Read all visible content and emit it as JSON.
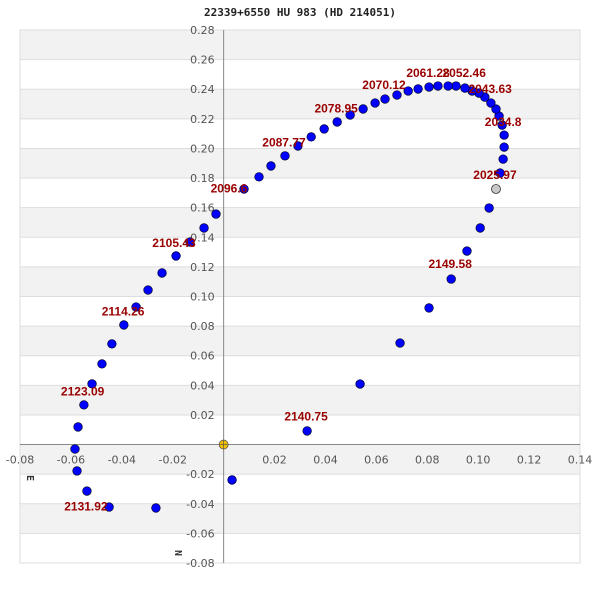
{
  "chart_data": {
    "type": "scatter",
    "title": "22339+6550 HU  983 (HD 214051)",
    "xlim": [
      -0.08,
      0.14
    ],
    "ylim": [
      -0.08,
      0.28
    ],
    "x_ticks": [
      "-0.08",
      "-0.06",
      "-0.04",
      "-0.02",
      "0.02",
      "0.04",
      "0.06",
      "0.08",
      "0.10",
      "0.12",
      "0.14"
    ],
    "y_ticks": [
      "0.28",
      "0.26",
      "0.24",
      "0.22",
      "0.20",
      "0.18",
      "0.16",
      "0.14",
      "0.12",
      "0.10",
      "0.08",
      "0.06",
      "0.04",
      "0.02",
      "-0.02",
      "-0.04",
      "-0.06",
      "-0.08"
    ],
    "grid": "horizontal bands",
    "direction_labels": {
      "east": "E",
      "north": "N"
    },
    "colors": {
      "orbit_points": "#0000ff",
      "primary": "#f5c000",
      "current": "#c8c8c8",
      "labels": "#990000",
      "band": "#f2f2f2"
    },
    "primary": [
      0,
      0
    ],
    "current_position": [
      0.107,
      0.1726
    ],
    "orbit_points": [
      [
        0.1086,
        0.1834
      ],
      [
        0.1098,
        0.1928
      ],
      [
        0.1102,
        0.2009
      ],
      [
        0.1102,
        0.209
      ],
      [
        0.1094,
        0.2158
      ],
      [
        0.1082,
        0.2219
      ],
      [
        0.107,
        0.2266
      ],
      [
        0.105,
        0.2307
      ],
      [
        0.1026,
        0.2347
      ],
      [
        0.1003,
        0.2374
      ],
      [
        0.0976,
        0.2388
      ],
      [
        0.0948,
        0.2408
      ],
      [
        0.0913,
        0.2422
      ],
      [
        0.0882,
        0.2422
      ],
      [
        0.0842,
        0.2422
      ],
      [
        0.0807,
        0.2415
      ],
      [
        0.0764,
        0.2402
      ],
      [
        0.0725,
        0.2388
      ],
      [
        0.0681,
        0.2361
      ],
      [
        0.0634,
        0.2334
      ],
      [
        0.0595,
        0.2307
      ],
      [
        0.0548,
        0.2267
      ],
      [
        0.0497,
        0.2226
      ],
      [
        0.0446,
        0.2179
      ],
      [
        0.0395,
        0.2132
      ],
      [
        0.0344,
        0.2078
      ],
      [
        0.0292,
        0.2017
      ],
      [
        0.0241,
        0.195
      ],
      [
        0.0186,
        0.1882
      ],
      [
        0.0139,
        0.1808
      ],
      [
        0.008,
        0.1726
      ],
      [
        -0.003,
        0.1557
      ],
      [
        -0.0077,
        0.1463
      ],
      [
        -0.0132,
        0.1368
      ],
      [
        -0.0187,
        0.1274
      ],
      [
        -0.0242,
        0.1159
      ],
      [
        -0.0297,
        0.1044
      ],
      [
        -0.0344,
        0.0929
      ],
      [
        -0.0392,
        0.0808
      ],
      [
        -0.0439,
        0.068
      ],
      [
        -0.0478,
        0.0545
      ],
      [
        -0.0517,
        0.041
      ],
      [
        -0.0549,
        0.0268
      ],
      [
        -0.0572,
        0.0119
      ],
      [
        -0.0584,
        -0.003
      ],
      [
        -0.0576,
        -0.0178
      ],
      [
        -0.0537,
        -0.0314
      ],
      [
        -0.045,
        -0.0422
      ],
      [
        -0.0266,
        -0.0428
      ],
      [
        0.0033,
        -0.0239
      ],
      [
        0.0328,
        0.0092
      ],
      [
        0.0536,
        0.0409
      ],
      [
        0.0693,
        0.0686
      ],
      [
        0.0807,
        0.0923
      ],
      [
        0.0894,
        0.1118
      ],
      [
        0.0956,
        0.1307
      ],
      [
        0.1008,
        0.1463
      ],
      [
        0.1043,
        0.1598
      ]
    ],
    "annotations": [
      {
        "text": "2061.28",
        "x": 0.0803,
        "y": 0.251
      },
      {
        "text": "2052.46",
        "x": 0.0945,
        "y": 0.251
      },
      {
        "text": "2070.12",
        "x": 0.063,
        "y": 0.243
      },
      {
        "text": "2043.63",
        "x": 0.1047,
        "y": 0.24
      },
      {
        "text": "2078.95",
        "x": 0.0442,
        "y": 0.227
      },
      {
        "text": "2034.8",
        "x": 0.1098,
        "y": 0.218
      },
      {
        "text": "2087.77",
        "x": 0.0237,
        "y": 0.204
      },
      {
        "text": "2025.97",
        "x": 0.1066,
        "y": 0.182
      },
      {
        "text": "2096.6",
        "x": 0.0021,
        "y": 0.173
      },
      {
        "text": "2105.43",
        "x": -0.0195,
        "y": 0.136
      },
      {
        "text": "2149.58",
        "x": 0.089,
        "y": 0.122
      },
      {
        "text": "2114.26",
        "x": -0.0395,
        "y": 0.09
      },
      {
        "text": "2123.09",
        "x": -0.0554,
        "y": 0.036
      },
      {
        "text": "2140.75",
        "x": 0.0324,
        "y": 0.019
      },
      {
        "text": "2131.92",
        "x": -0.0541,
        "y": -0.042
      }
    ]
  }
}
